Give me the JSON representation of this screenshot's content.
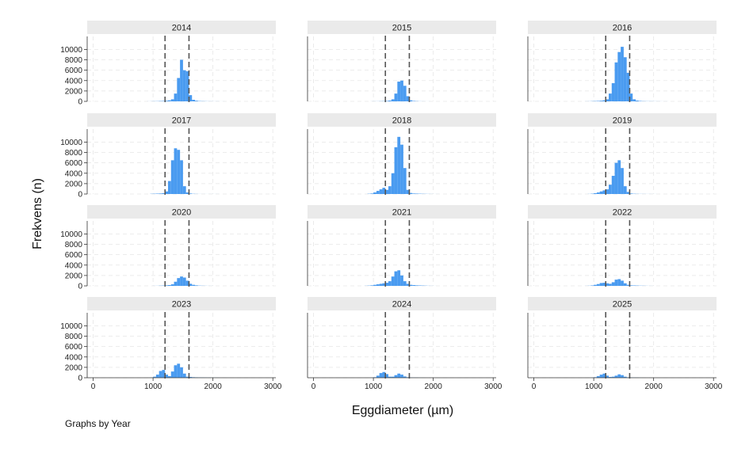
{
  "chart_data": {
    "type": "bar",
    "subtype": "histogram-small-multiples",
    "xlabel": "Eggdiameter (µm)",
    "ylabel": "Frekvens (n)",
    "note": "Graphs by Year",
    "xlim": [
      -100,
      3050
    ],
    "ylim": [
      0,
      12500
    ],
    "x_ticks": [
      0,
      1000,
      2000,
      3000
    ],
    "x_tick_labels": [
      "0",
      "1000",
      "2000",
      "3000"
    ],
    "y_ticks": [
      0,
      2000,
      4000,
      6000,
      8000,
      10000
    ],
    "y_tick_labels": [
      "0",
      "2000",
      "4000",
      "6000",
      "8000",
      "10000"
    ],
    "reference_lines": [
      1200,
      1600
    ],
    "bin_width": 50,
    "grid": true,
    "colors": {
      "bars": "#4a9bf0",
      "strip": "#eaeaea",
      "axis": "#333333",
      "grid": "#e6e6e6",
      "reference": "#555555"
    },
    "bins": [
      550,
      600,
      650,
      700,
      750,
      800,
      850,
      900,
      950,
      1000,
      1050,
      1100,
      1150,
      1200,
      1250,
      1300,
      1350,
      1400,
      1450,
      1500,
      1550,
      1600,
      1650,
      1700,
      1750,
      1800,
      1850,
      1900,
      1950,
      2000,
      2050,
      2100,
      2150,
      2200,
      2250,
      2300,
      2350,
      2400,
      2450,
      2500
    ],
    "panels": [
      {
        "year": "2014",
        "values": [
          0,
          0,
          0,
          0,
          0,
          0,
          0,
          10,
          20,
          30,
          40,
          60,
          80,
          120,
          200,
          400,
          1500,
          4500,
          8000,
          6000,
          5800,
          1200,
          300,
          120,
          60,
          40,
          30,
          20,
          15,
          10,
          10,
          5,
          5,
          0,
          0,
          0,
          0,
          0,
          0,
          0
        ]
      },
      {
        "year": "2015",
        "values": [
          0,
          0,
          0,
          0,
          0,
          0,
          0,
          0,
          10,
          15,
          20,
          30,
          50,
          80,
          150,
          400,
          1500,
          3800,
          4000,
          3000,
          1000,
          200,
          80,
          40,
          20,
          10,
          5,
          5,
          0,
          0,
          0,
          0,
          0,
          0,
          0,
          0,
          0,
          0,
          0,
          0
        ]
      },
      {
        "year": "2016",
        "values": [
          0,
          0,
          0,
          0,
          0,
          0,
          10,
          20,
          40,
          60,
          80,
          120,
          200,
          400,
          1500,
          3500,
          7500,
          9500,
          10500,
          8500,
          5500,
          1500,
          400,
          150,
          80,
          40,
          30,
          25,
          20,
          15,
          10,
          10,
          5,
          5,
          0,
          0,
          0,
          0,
          0,
          0
        ]
      },
      {
        "year": "2017",
        "values": [
          0,
          0,
          0,
          0,
          0,
          0,
          0,
          0,
          40,
          60,
          80,
          100,
          150,
          500,
          2500,
          6500,
          8800,
          8500,
          6500,
          1500,
          300,
          100,
          40,
          20,
          10,
          5,
          5,
          5,
          5,
          5,
          5,
          0,
          0,
          0,
          0,
          0,
          0,
          0,
          0,
          0
        ]
      },
      {
        "year": "2018",
        "values": [
          0,
          0,
          0,
          0,
          0,
          0,
          0,
          50,
          100,
          300,
          600,
          900,
          1200,
          800,
          1500,
          4000,
          9000,
          11000,
          9500,
          5000,
          800,
          200,
          100,
          80,
          60,
          40,
          30,
          20,
          10,
          5,
          5,
          0,
          0,
          0,
          0,
          0,
          0,
          0,
          0,
          0
        ]
      },
      {
        "year": "2019",
        "values": [
          0,
          0,
          0,
          0,
          0,
          0,
          0,
          20,
          60,
          150,
          300,
          500,
          700,
          900,
          1800,
          3500,
          6000,
          6500,
          5000,
          1500,
          400,
          100,
          50,
          30,
          20,
          15,
          10,
          10,
          5,
          5,
          0,
          0,
          0,
          0,
          0,
          0,
          0,
          0,
          0,
          0
        ]
      },
      {
        "year": "2020",
        "values": [
          0,
          0,
          0,
          0,
          0,
          0,
          0,
          0,
          0,
          10,
          20,
          40,
          60,
          100,
          150,
          300,
          800,
          1500,
          1800,
          1600,
          1000,
          400,
          200,
          100,
          50,
          30,
          20,
          10,
          5,
          0,
          0,
          0,
          0,
          0,
          0,
          0,
          0,
          0,
          0,
          0
        ]
      },
      {
        "year": "2021",
        "values": [
          0,
          0,
          0,
          0,
          0,
          0,
          20,
          50,
          100,
          200,
          300,
          400,
          500,
          600,
          900,
          1800,
          2800,
          3000,
          2000,
          900,
          400,
          200,
          150,
          100,
          80,
          60,
          40,
          20,
          10,
          5,
          0,
          0,
          0,
          0,
          0,
          0,
          0,
          0,
          0,
          0
        ]
      },
      {
        "year": "2022",
        "values": [
          0,
          0,
          0,
          0,
          0,
          0,
          10,
          30,
          80,
          200,
          350,
          550,
          600,
          500,
          400,
          700,
          1200,
          1300,
          1000,
          500,
          200,
          100,
          80,
          60,
          40,
          30,
          20,
          10,
          5,
          0,
          0,
          0,
          0,
          0,
          0,
          0,
          0,
          0,
          0,
          0
        ]
      },
      {
        "year": "2023",
        "values": [
          0,
          0,
          0,
          0,
          0,
          0,
          0,
          10,
          50,
          200,
          600,
          1300,
          1500,
          600,
          300,
          1200,
          2400,
          2700,
          2000,
          800,
          200,
          150,
          100,
          80,
          60,
          50,
          40,
          30,
          20,
          20,
          15,
          10,
          10,
          5,
          5,
          0,
          0,
          0,
          0,
          0
        ]
      },
      {
        "year": "2024",
        "values": [
          0,
          0,
          0,
          0,
          0,
          0,
          0,
          10,
          30,
          100,
          400,
          900,
          1100,
          700,
          200,
          200,
          500,
          800,
          600,
          250,
          100,
          50,
          40,
          30,
          20,
          15,
          10,
          5,
          5,
          0,
          0,
          0,
          0,
          0,
          0,
          0,
          0,
          0,
          0,
          0
        ]
      },
      {
        "year": "2025",
        "values": [
          0,
          0,
          0,
          0,
          0,
          0,
          0,
          10,
          30,
          100,
          300,
          600,
          800,
          400,
          150,
          200,
          400,
          650,
          500,
          200,
          80,
          50,
          40,
          30,
          20,
          10,
          5,
          5,
          0,
          0,
          0,
          0,
          0,
          0,
          0,
          0,
          0,
          0,
          0,
          0
        ]
      }
    ]
  }
}
